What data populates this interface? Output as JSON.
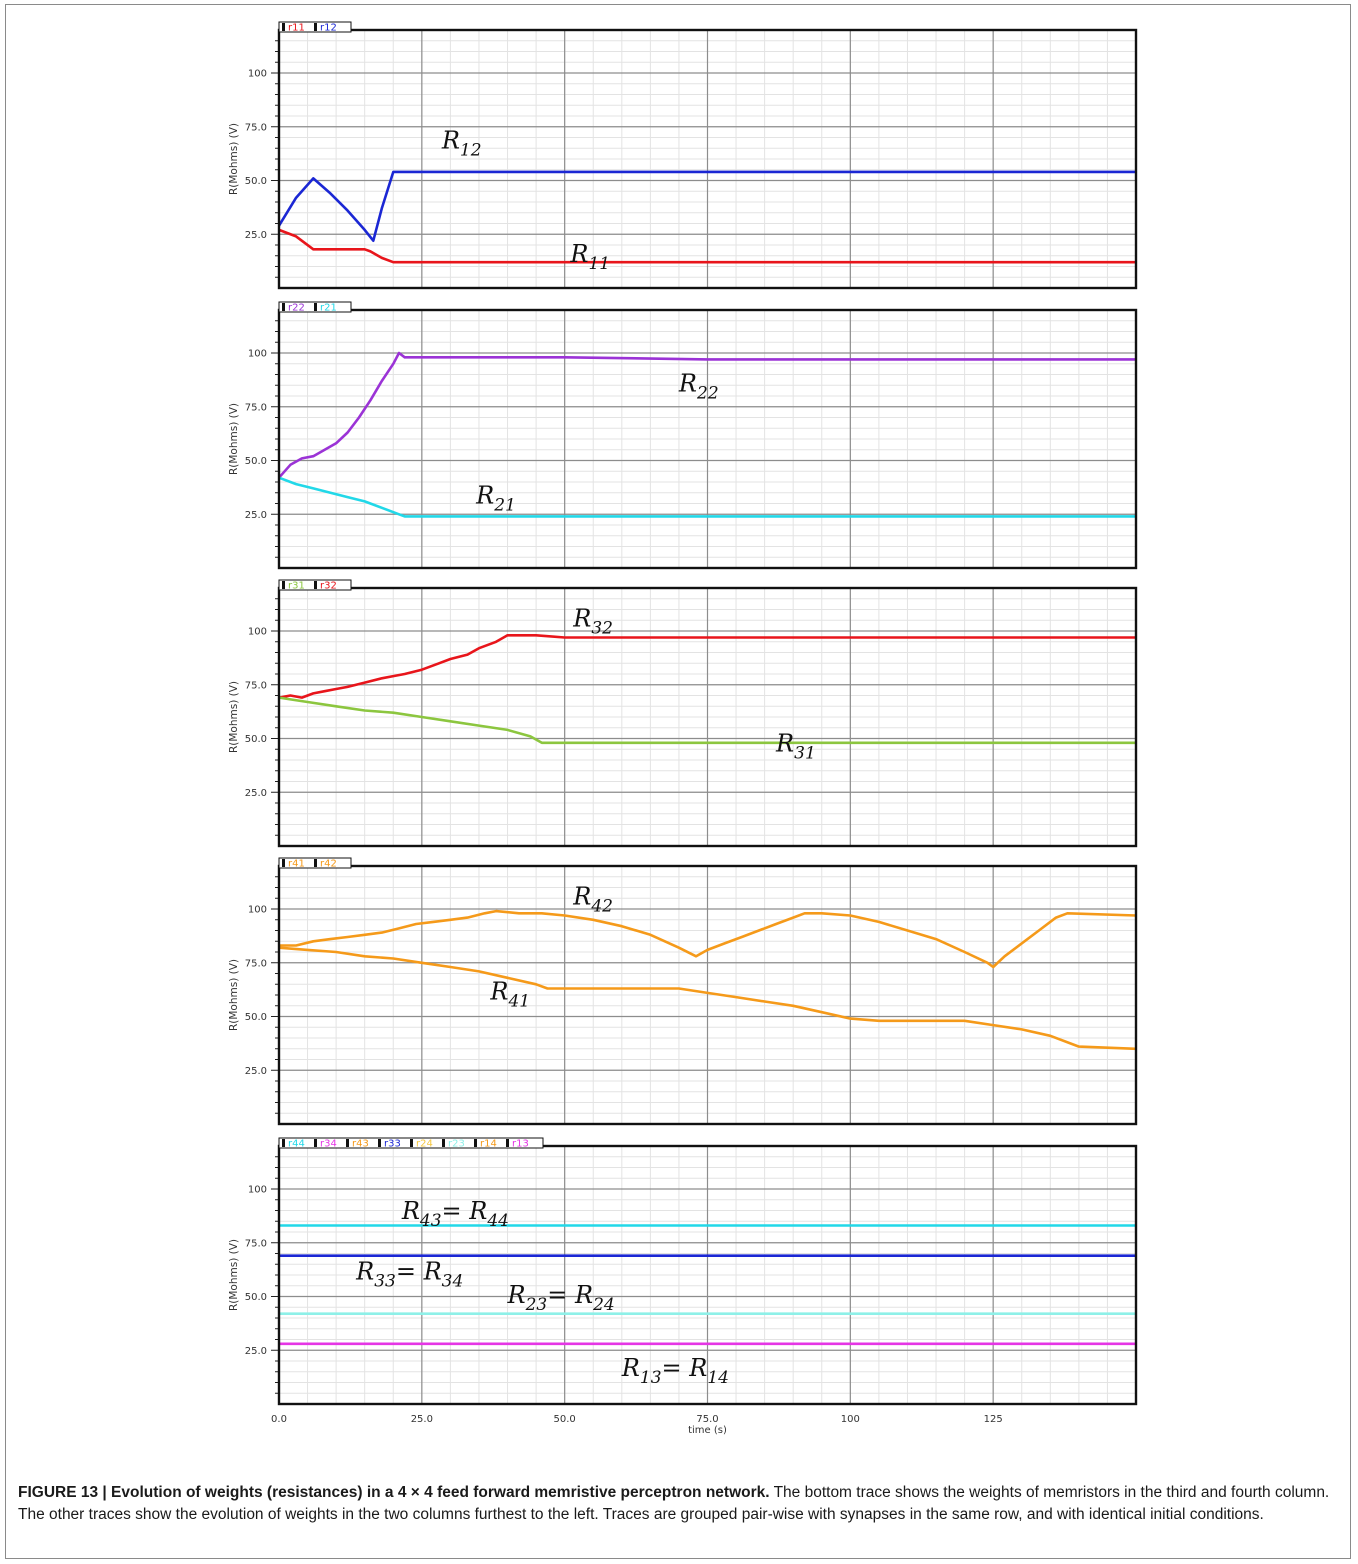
{
  "figure": {
    "caption_title": "FIGURE 13 | Evolution of weights (resistances) in a 4 × 4 feed forward memristive perceptron network.",
    "caption_body": " The bottom trace shows the weights of memristors in the third and fourth column. The other traces show the evolution of weights in the two columns furthest to the left. Traces are grouped pair-wise with synapses in the same row, and with identical initial conditions."
  },
  "chart_data": [
    {
      "type": "line",
      "ylabel": "R(Mohms) (V)",
      "xlabel": "",
      "xlim": [
        0,
        150
      ],
      "ylim": [
        0,
        120
      ],
      "x_ticks": [
        0,
        25,
        50,
        75,
        100,
        125
      ],
      "x_tick_labels": [],
      "y_ticks": [
        25,
        50,
        75,
        100
      ],
      "y_tick_labels": [
        "25.0",
        "50.0",
        "75.0",
        "100"
      ],
      "grid": true,
      "legend": [
        "r11",
        "r12"
      ],
      "series": [
        {
          "name": "r11",
          "color": "#e8151b",
          "label": "R",
          "label_sub": "11",
          "label_at": [
            51,
            12
          ],
          "x": [
            0,
            3,
            6,
            9,
            12,
            15,
            16,
            18,
            20,
            22,
            25,
            50,
            75,
            100,
            125,
            150
          ],
          "y": [
            27,
            24,
            18,
            18,
            18,
            18,
            17,
            14,
            12,
            12,
            12,
            12,
            12,
            12,
            12,
            12
          ]
        },
        {
          "name": "r12",
          "color": "#1b27d4",
          "label": "R",
          "label_sub": "12",
          "label_at": [
            28.5,
            65
          ],
          "x": [
            0,
            3,
            6,
            9,
            12,
            15,
            16.5,
            18,
            20,
            22,
            25,
            50,
            75,
            100,
            125,
            150
          ],
          "y": [
            29,
            42,
            51,
            44,
            36,
            27,
            22,
            37,
            54,
            54,
            54,
            54,
            54,
            54,
            54,
            54
          ]
        }
      ]
    },
    {
      "type": "line",
      "ylabel": "R(Mohms) (V)",
      "xlabel": "",
      "xlim": [
        0,
        150
      ],
      "ylim": [
        0,
        120
      ],
      "x_ticks": [
        0,
        25,
        50,
        75,
        100,
        125
      ],
      "x_tick_labels": [],
      "y_ticks": [
        25,
        50,
        75,
        100
      ],
      "y_tick_labels": [
        "25.0",
        "50.0",
        "75.0",
        "100"
      ],
      "grid": true,
      "legend": [
        "r22",
        "r21"
      ],
      "series": [
        {
          "name": "r22",
          "color": "#9b33d6",
          "label": "R",
          "label_sub": "22",
          "label_at": [
            70,
            82
          ],
          "x": [
            0,
            2,
            4,
            6,
            8,
            10,
            12,
            14,
            16,
            18,
            20,
            21,
            22,
            25,
            50,
            75,
            100,
            125,
            150
          ],
          "y": [
            42,
            48,
            51,
            52,
            55,
            58,
            63,
            70,
            78,
            87,
            95,
            100,
            98,
            98,
            98,
            97,
            97,
            97,
            97
          ]
        },
        {
          "name": "r21",
          "color": "#22d8e8",
          "label": "R",
          "label_sub": "21",
          "label_at": [
            34.5,
            30
          ],
          "x": [
            0,
            3,
            6,
            9,
            12,
            15,
            18,
            21,
            22,
            25,
            50,
            75,
            100,
            125,
            150
          ],
          "y": [
            42,
            39,
            37,
            35,
            33,
            31,
            28,
            25,
            24,
            24,
            24,
            24,
            24,
            24,
            24
          ]
        }
      ]
    },
    {
      "type": "line",
      "ylabel": "R(Mohms) (V)",
      "xlabel": "",
      "xlim": [
        0,
        150
      ],
      "ylim": [
        0,
        120
      ],
      "x_ticks": [
        0,
        25,
        50,
        75,
        100,
        125
      ],
      "x_tick_labels": [],
      "y_ticks": [
        25,
        50,
        75,
        100
      ],
      "y_tick_labels": [
        "25.0",
        "50.0",
        "75.0",
        "100"
      ],
      "grid": true,
      "legend": [
        "r31",
        "r32"
      ],
      "series": [
        {
          "name": "r32",
          "color": "#e8151b",
          "label": "R",
          "label_sub": "32",
          "label_at": [
            51.5,
            102
          ],
          "x": [
            0,
            2,
            4,
            6,
            8,
            10,
            12,
            15,
            18,
            20,
            22,
            25,
            28,
            30,
            33,
            35,
            38,
            40,
            45,
            50,
            75,
            100,
            125,
            150
          ],
          "y": [
            69,
            70,
            69,
            71,
            72,
            73,
            74,
            76,
            78,
            79,
            80,
            82,
            85,
            87,
            89,
            92,
            95,
            98,
            98,
            97,
            97,
            97,
            97,
            97
          ]
        },
        {
          "name": "r31",
          "color": "#8cc63f",
          "label": "R",
          "label_sub": "31",
          "label_at": [
            87,
            44
          ],
          "x": [
            0,
            5,
            10,
            15,
            20,
            25,
            30,
            35,
            40,
            44,
            46,
            50,
            75,
            100,
            125,
            150
          ],
          "y": [
            69,
            67,
            65,
            63,
            62,
            60,
            58,
            56,
            54,
            51,
            48,
            48,
            48,
            48,
            48,
            48
          ]
        }
      ]
    },
    {
      "type": "line",
      "ylabel": "R(Mohms) (V)",
      "xlabel": "",
      "xlim": [
        0,
        150
      ],
      "ylim": [
        0,
        120
      ],
      "x_ticks": [
        0,
        25,
        50,
        75,
        100,
        125
      ],
      "x_tick_labels": [],
      "y_ticks": [
        25,
        50,
        75,
        100
      ],
      "y_tick_labels": [
        "25.0",
        "50.0",
        "75.0",
        "100"
      ],
      "grid": true,
      "legend": [
        "r41",
        "r42"
      ],
      "series": [
        {
          "name": "r42",
          "color": "#f59a1a",
          "label": "R",
          "label_sub": "42",
          "label_at": [
            51.5,
            102
          ],
          "x": [
            0,
            3,
            6,
            9,
            12,
            15,
            18,
            21,
            24,
            27,
            30,
            33,
            36,
            38,
            42,
            46,
            50,
            55,
            60,
            65,
            70,
            73,
            75,
            78,
            81,
            84,
            87,
            90,
            92,
            95,
            100,
            105,
            110,
            115,
            120,
            124,
            125,
            127,
            130,
            133,
            136,
            138,
            150
          ],
          "y": [
            83,
            83,
            85,
            86,
            87,
            88,
            89,
            91,
            93,
            94,
            95,
            96,
            98,
            99,
            98,
            98,
            97,
            95,
            92,
            88,
            82,
            78,
            81,
            84,
            87,
            90,
            93,
            96,
            98,
            98,
            97,
            94,
            90,
            86,
            80,
            75,
            73,
            78,
            84,
            90,
            96,
            98,
            97
          ]
        },
        {
          "name": "r41",
          "color": "#f59a1a",
          "label": "R",
          "label_sub": "41",
          "label_at": [
            37,
            58
          ],
          "x": [
            0,
            5,
            10,
            15,
            20,
            25,
            30,
            35,
            40,
            45,
            47,
            50,
            60,
            70,
            75,
            80,
            85,
            90,
            95,
            100,
            105,
            110,
            120,
            125,
            130,
            135,
            140,
            150
          ],
          "y": [
            82,
            81,
            80,
            78,
            77,
            75,
            73,
            71,
            68,
            65,
            63,
            63,
            63,
            63,
            61,
            59,
            57,
            55,
            52,
            49,
            48,
            48,
            48,
            46,
            44,
            41,
            36,
            35
          ]
        }
      ]
    },
    {
      "type": "line",
      "ylabel": "R(Mohms) (V)",
      "xlabel": "time (s)",
      "xlim": [
        0,
        150
      ],
      "ylim": [
        0,
        120
      ],
      "x_ticks": [
        0,
        25,
        50,
        75,
        100,
        125
      ],
      "x_tick_labels": [
        "0.0",
        "25.0",
        "50.0",
        "75.0",
        "100",
        "125"
      ],
      "y_ticks": [
        25,
        50,
        75,
        100
      ],
      "y_tick_labels": [
        "25.0",
        "50.0",
        "75.0",
        "100"
      ],
      "grid": true,
      "legend": [
        "r44",
        "r34",
        "r43",
        "r33",
        "r24",
        "r23",
        "r14",
        "r13"
      ],
      "legend_colors": [
        "#22d8e8",
        "#e535e5",
        "#f59a1a",
        "#1b27d4",
        "#f5c842",
        "#8ef0e8",
        "#f59a1a",
        "#e535e5"
      ],
      "series": [
        {
          "name": "r43",
          "color": "#22d8e8",
          "label": "R",
          "label_sub": "43",
          "label_eq": "= R",
          "label_sub2": "44",
          "label_at": [
            21.5,
            86
          ],
          "x": [
            0,
            150
          ],
          "y": [
            83,
            83
          ]
        },
        {
          "name": "r33",
          "color": "#1b27d4",
          "label": "R",
          "label_sub": "33",
          "label_eq": "= R",
          "label_sub2": "34",
          "label_at": [
            13.5,
            58
          ],
          "x": [
            0,
            150
          ],
          "y": [
            69,
            69
          ]
        },
        {
          "name": "r23",
          "color": "#8ef0e8",
          "label": "R",
          "label_sub": "23",
          "label_eq": "= R",
          "label_sub2": "24",
          "label_at": [
            40,
            47
          ],
          "x": [
            0,
            150
          ],
          "y": [
            42,
            42
          ]
        },
        {
          "name": "r13",
          "color": "#e535e5",
          "label": "R",
          "label_sub": "13",
          "label_eq": "= R",
          "label_sub2": "14",
          "label_at": [
            60,
            13
          ],
          "x": [
            0,
            150
          ],
          "y": [
            28,
            28
          ]
        }
      ]
    }
  ]
}
